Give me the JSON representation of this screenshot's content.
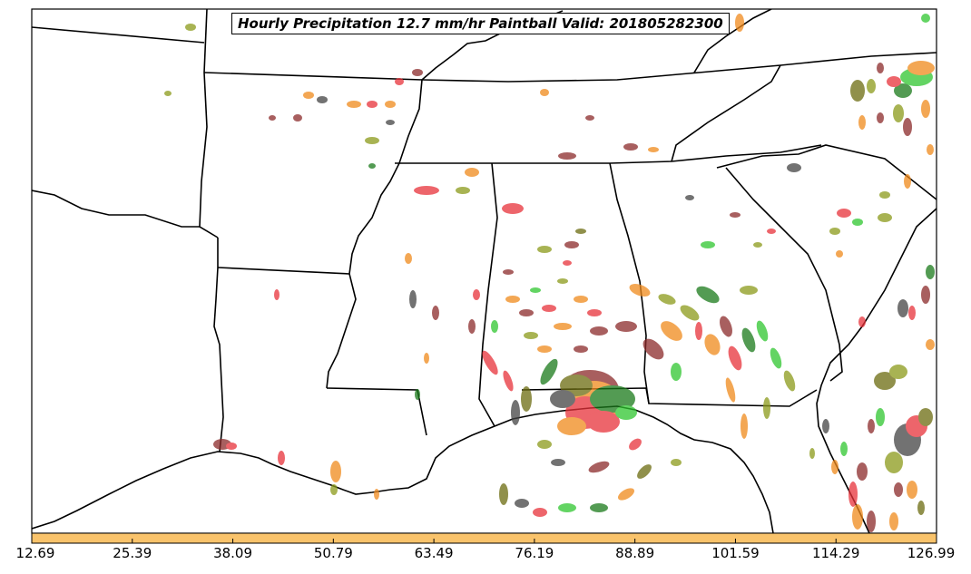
{
  "title": "Hourly Precipitation 12.7 mm/hr Paintball Valid: 201805282300",
  "colorbar": {
    "color": "#f9c36b",
    "tick_labels": [
      "12.69",
      "25.39",
      "38.09",
      "50.79",
      "63.49",
      "76.19",
      "88.89",
      "101.59",
      "114.29",
      "126.99"
    ]
  },
  "member_colors": [
    "#e8323a",
    "#f08a1c",
    "#8b9a1a",
    "#2fc62f",
    "#1a7a1a",
    "#444444",
    "#8b2a2a",
    "#b35a1a",
    "#6b6b10"
  ]
}
